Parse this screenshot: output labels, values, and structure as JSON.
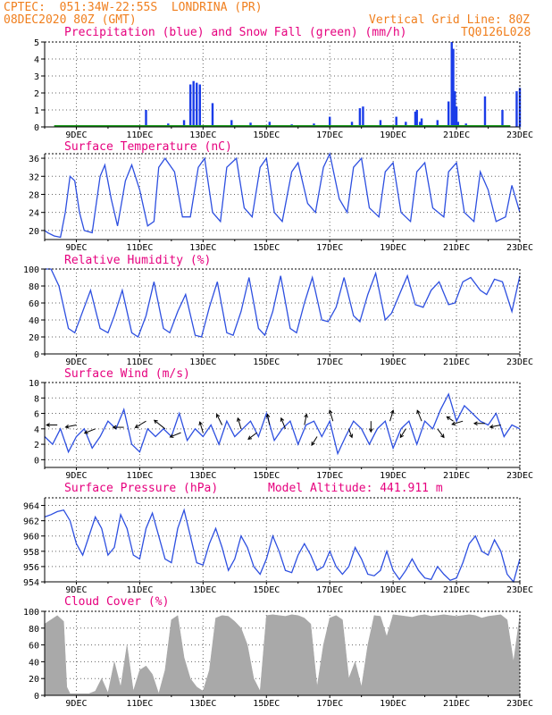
{
  "header": {
    "line1": "CPTEC:  051:34W-22:55S  LONDRINA (PR)",
    "line2": "08DEC2020 80Z (GMT)",
    "grid_note": "Vertical Grid Line: 80Z",
    "code": "TQ0126L028"
  },
  "colors": {
    "header": "#f07f1e",
    "title": "#e6007e",
    "line": "#2d4fe0",
    "bar": "#1a3ce8",
    "snow": "#1a9a1a",
    "cloud": "#a9a9a9",
    "grid": "#666666"
  },
  "chart_data": [
    {
      "id": "precip",
      "type": "bar",
      "title": "Precipitation (blue) and Snow Fall (green) (mm/h)",
      "x_ticks": [
        "9DEC",
        "11DEC",
        "13DEC",
        "15DEC",
        "17DEC",
        "19DEC",
        "21DEC",
        "23DEC"
      ],
      "xlim": [
        0,
        15
      ],
      "ylim": [
        0,
        5
      ],
      "yticks": [
        0,
        1,
        2,
        3,
        4,
        5
      ],
      "grid": true,
      "series": [
        {
          "values": [
            [
              2.85,
              0.08
            ],
            [
              3.2,
              1.0
            ],
            [
              3.9,
              0.2
            ],
            [
              4.4,
              0.4
            ],
            [
              4.6,
              2.5
            ],
            [
              4.7,
              2.7
            ],
            [
              4.8,
              2.6
            ],
            [
              4.9,
              2.5
            ],
            [
              5.3,
              1.4
            ],
            [
              5.9,
              0.4
            ],
            [
              6.5,
              0.25
            ],
            [
              7.1,
              0.3
            ],
            [
              7.8,
              0.15
            ],
            [
              8.5,
              0.2
            ],
            [
              9.0,
              0.6
            ],
            [
              9.7,
              0.3
            ],
            [
              9.95,
              1.1
            ],
            [
              10.05,
              1.2
            ],
            [
              10.6,
              0.4
            ],
            [
              11.1,
              0.6
            ],
            [
              11.4,
              0.3
            ],
            [
              11.7,
              0.9
            ],
            [
              11.75,
              1.0
            ],
            [
              11.85,
              0.3
            ],
            [
              11.9,
              0.5
            ],
            [
              12.4,
              0.4
            ],
            [
              12.75,
              1.5
            ],
            [
              12.85,
              5.0
            ],
            [
              12.9,
              4.6
            ],
            [
              12.95,
              2.1
            ],
            [
              13.0,
              1.2
            ],
            [
              13.05,
              0.3
            ],
            [
              13.3,
              0.2
            ],
            [
              13.9,
              1.8
            ],
            [
              14.45,
              1.0
            ],
            [
              14.9,
              2.1
            ],
            [
              15.0,
              2.3
            ]
          ]
        },
        {
          "name": "Snow Fall",
          "values": [
            [
              0.3,
              0.05
            ],
            [
              14.7,
              0.05
            ]
          ]
        }
      ]
    },
    {
      "id": "temp",
      "type": "line",
      "title": "Surface Temperature (nC)",
      "x_ticks": [
        "9DEC",
        "11DEC",
        "13DEC",
        "15DEC",
        "17DEC",
        "19DEC",
        "21DEC",
        "23DEC"
      ],
      "xlim": [
        0,
        15
      ],
      "ylim": [
        18,
        37
      ],
      "yticks": [
        20,
        24,
        28,
        32,
        36
      ],
      "grid": true,
      "series": [
        {
          "x": [
            0,
            0.1,
            0.3,
            0.5,
            0.65,
            0.8,
            0.95,
            1.1,
            1.25,
            1.5,
            1.75,
            1.9,
            2.1,
            2.3,
            2.55,
            2.75,
            3.0,
            3.25,
            3.45,
            3.6,
            3.8,
            4.1,
            4.35,
            4.6,
            4.85,
            5.05,
            5.3,
            5.55,
            5.75,
            6.05,
            6.3,
            6.55,
            6.8,
            7.0,
            7.25,
            7.5,
            7.8,
            8.0,
            8.3,
            8.55,
            8.8,
            9.0,
            9.3,
            9.55,
            9.75,
            10.0,
            10.25,
            10.55,
            10.75,
            11.0,
            11.25,
            11.55,
            11.75,
            12.0,
            12.25,
            12.6,
            12.75,
            13.0,
            13.25,
            13.55,
            13.75,
            14.0,
            14.25,
            14.55,
            14.75,
            15.0
          ],
          "y": [
            20,
            19.5,
            18.8,
            18.5,
            24,
            32,
            31,
            24,
            20,
            19.5,
            32,
            34.5,
            27,
            21,
            31,
            34.5,
            29,
            21,
            22,
            34,
            36,
            33,
            23,
            23,
            34,
            36,
            24,
            22,
            34,
            36,
            25,
            23,
            34,
            36,
            24,
            22,
            33,
            35,
            26,
            24,
            34,
            37,
            27,
            24,
            34,
            36,
            25,
            23,
            33,
            35,
            24,
            22,
            33,
            35,
            25,
            23,
            33,
            35,
            24,
            22,
            33,
            29,
            22,
            23,
            30,
            24
          ]
        }
      ]
    },
    {
      "id": "rh",
      "type": "line",
      "title": "Relative Humidity (%)",
      "x_ticks": [
        "9DEC",
        "11DEC",
        "13DEC",
        "15DEC",
        "17DEC",
        "19DEC",
        "21DEC",
        "23DEC"
      ],
      "xlim": [
        0,
        15
      ],
      "ylim": [
        0,
        100
      ],
      "yticks": [
        0,
        20,
        40,
        60,
        80,
        100
      ],
      "grid": true,
      "series": [
        {
          "x": [
            0,
            0.2,
            0.45,
            0.75,
            0.95,
            1.15,
            1.45,
            1.75,
            2.0,
            2.2,
            2.45,
            2.75,
            2.95,
            3.2,
            3.45,
            3.75,
            3.95,
            4.2,
            4.45,
            4.75,
            4.95,
            5.2,
            5.45,
            5.75,
            5.95,
            6.2,
            6.45,
            6.75,
            6.95,
            7.2,
            7.45,
            7.75,
            7.95,
            8.2,
            8.45,
            8.75,
            8.95,
            9.2,
            9.45,
            9.75,
            9.95,
            10.2,
            10.45,
            10.75,
            10.95,
            11.2,
            11.45,
            11.7,
            11.95,
            12.2,
            12.45,
            12.75,
            12.95,
            13.2,
            13.45,
            13.75,
            13.95,
            14.2,
            14.45,
            14.75,
            15.0
          ],
          "y": [
            100,
            100,
            80,
            30,
            25,
            45,
            75,
            30,
            25,
            45,
            75,
            25,
            20,
            45,
            85,
            30,
            25,
            50,
            70,
            22,
            20,
            55,
            85,
            25,
            22,
            50,
            90,
            30,
            22,
            50,
            92,
            30,
            25,
            60,
            90,
            40,
            38,
            55,
            90,
            45,
            38,
            70,
            95,
            40,
            48,
            70,
            92,
            58,
            55,
            75,
            85,
            58,
            60,
            85,
            90,
            75,
            70,
            88,
            85,
            50,
            92
          ]
        }
      ]
    },
    {
      "id": "wind",
      "type": "line",
      "title": "Surface Wind (m/s)",
      "x_ticks": [
        "9DEC",
        "11DEC",
        "13DEC",
        "15DEC",
        "17DEC",
        "19DEC",
        "21DEC",
        "23DEC"
      ],
      "xlim": [
        0,
        15
      ],
      "ylim": [
        -1,
        10
      ],
      "yticks": [
        0,
        2,
        4,
        6,
        8,
        10
      ],
      "grid": true,
      "series": [
        {
          "x": [
            0,
            0.25,
            0.5,
            0.75,
            1.0,
            1.25,
            1.5,
            1.75,
            2.0,
            2.25,
            2.5,
            2.75,
            3.0,
            3.25,
            3.5,
            3.75,
            4.0,
            4.25,
            4.5,
            4.75,
            5.0,
            5.25,
            5.5,
            5.75,
            6.0,
            6.25,
            6.5,
            6.75,
            7.0,
            7.25,
            7.5,
            7.75,
            8.0,
            8.25,
            8.5,
            8.75,
            9.0,
            9.25,
            9.5,
            9.75,
            10.0,
            10.25,
            10.5,
            10.75,
            11.0,
            11.25,
            11.5,
            11.75,
            12.0,
            12.25,
            12.5,
            12.75,
            13.0,
            13.25,
            13.5,
            13.75,
            14.0,
            14.25,
            14.5,
            14.75,
            15.0
          ],
          "y": [
            3,
            2,
            4,
            1,
            3,
            4,
            1.5,
            3,
            5,
            4,
            6.5,
            2,
            1,
            4,
            3,
            4,
            3,
            6,
            2.5,
            4,
            3,
            4.5,
            2,
            5,
            3,
            4,
            5,
            3,
            6,
            2.5,
            4,
            5,
            2,
            4.5,
            5,
            3,
            5,
            0.8,
            3,
            5,
            4,
            2,
            4,
            5,
            1.5,
            4,
            5,
            2,
            5,
            4,
            6.5,
            8.5,
            5,
            7,
            6,
            5,
            4.5,
            6,
            3,
            4.5,
            4
          ]
        }
      ]
    },
    {
      "id": "pressure",
      "type": "line",
      "title": "Surface Pressure (hPa)",
      "annotation": "Model Altitude: 441.911 m",
      "x_ticks": [
        "9DEC",
        "11DEC",
        "13DEC",
        "15DEC",
        "17DEC",
        "19DEC",
        "21DEC",
        "23DEC"
      ],
      "xlim": [
        0,
        15
      ],
      "ylim": [
        954,
        965
      ],
      "yticks": [
        954,
        956,
        958,
        960,
        962,
        964
      ],
      "grid": true,
      "series": [
        {
          "x": [
            0,
            0.2,
            0.4,
            0.6,
            0.8,
            1.0,
            1.2,
            1.4,
            1.6,
            1.8,
            2.0,
            2.2,
            2.4,
            2.6,
            2.8,
            3.0,
            3.2,
            3.4,
            3.6,
            3.8,
            4.0,
            4.2,
            4.4,
            4.6,
            4.8,
            5.0,
            5.2,
            5.4,
            5.6,
            5.8,
            6.0,
            6.2,
            6.4,
            6.6,
            6.8,
            7.0,
            7.2,
            7.4,
            7.6,
            7.8,
            8.0,
            8.2,
            8.4,
            8.6,
            8.8,
            9.0,
            9.2,
            9.4,
            9.6,
            9.8,
            10.0,
            10.2,
            10.4,
            10.6,
            10.8,
            11.0,
            11.2,
            11.4,
            11.6,
            11.8,
            12.0,
            12.2,
            12.4,
            12.6,
            12.8,
            13.0,
            13.2,
            13.4,
            13.6,
            13.8,
            14.0,
            14.2,
            14.4,
            14.6,
            14.8,
            15.0
          ],
          "y": [
            962.5,
            962.8,
            963.2,
            963.4,
            962,
            959,
            957.5,
            960,
            962.5,
            961,
            957.5,
            958.5,
            962.8,
            961,
            957.5,
            957,
            961,
            963,
            960,
            957,
            956.5,
            961,
            963.4,
            960,
            956.5,
            956.2,
            959,
            961,
            958.5,
            955.5,
            957,
            960,
            958.5,
            956,
            955,
            957,
            960,
            958,
            955.5,
            955.2,
            957.5,
            959,
            957.5,
            955.5,
            956,
            958,
            956,
            955,
            956,
            958.5,
            957,
            955,
            954.8,
            955.5,
            958,
            955.5,
            954.3,
            955.5,
            957,
            955.5,
            954.5,
            954.3,
            956,
            955,
            954.2,
            954.5,
            956.5,
            959,
            960,
            958,
            957.5,
            959.5,
            958,
            955,
            954,
            957
          ]
        }
      ]
    },
    {
      "id": "cloud",
      "type": "area",
      "title": "Cloud Cover (%)",
      "x_ticks": [
        "9DEC",
        "11DEC",
        "13DEC",
        "15DEC",
        "17DEC",
        "19DEC",
        "21DEC",
        "23DEC"
      ],
      "xlim": [
        0,
        15
      ],
      "ylim": [
        0,
        100
      ],
      "yticks": [
        0,
        20,
        40,
        60,
        80,
        100
      ],
      "grid": true,
      "series": [
        {
          "x": [
            0,
            0.2,
            0.4,
            0.6,
            0.7,
            0.8,
            1.0,
            1.2,
            1.4,
            1.6,
            1.8,
            2.0,
            2.2,
            2.4,
            2.6,
            2.8,
            3.0,
            3.2,
            3.4,
            3.6,
            3.8,
            4.0,
            4.2,
            4.4,
            4.6,
            4.8,
            5.0,
            5.2,
            5.4,
            5.6,
            5.8,
            6.0,
            6.2,
            6.4,
            6.6,
            6.8,
            7.0,
            7.2,
            7.4,
            7.6,
            7.8,
            8.0,
            8.2,
            8.4,
            8.6,
            8.8,
            9.0,
            9.2,
            9.4,
            9.6,
            9.8,
            10.0,
            10.2,
            10.4,
            10.6,
            10.8,
            11.0,
            11.2,
            11.4,
            11.6,
            11.8,
            12.0,
            12.2,
            12.4,
            12.6,
            12.8,
            13.0,
            13.2,
            13.4,
            13.6,
            13.8,
            14.0,
            14.2,
            14.4,
            14.6,
            14.8,
            15.0
          ],
          "y": [
            85,
            90,
            95,
            88,
            10,
            2,
            2,
            2,
            2,
            5,
            20,
            3,
            40,
            10,
            60,
            5,
            30,
            35,
            25,
            2,
            30,
            90,
            95,
            45,
            20,
            10,
            5,
            30,
            92,
            95,
            94,
            88,
            80,
            60,
            20,
            5,
            95,
            96,
            95,
            94,
            96,
            95,
            92,
            85,
            10,
            60,
            92,
            95,
            90,
            20,
            40,
            10,
            60,
            95,
            94,
            70,
            96,
            95,
            94,
            93,
            95,
            96,
            94,
            95,
            96,
            95,
            94,
            95,
            96,
            95,
            92,
            94,
            95,
            96,
            90,
            40,
            95
          ]
        }
      ]
    }
  ]
}
